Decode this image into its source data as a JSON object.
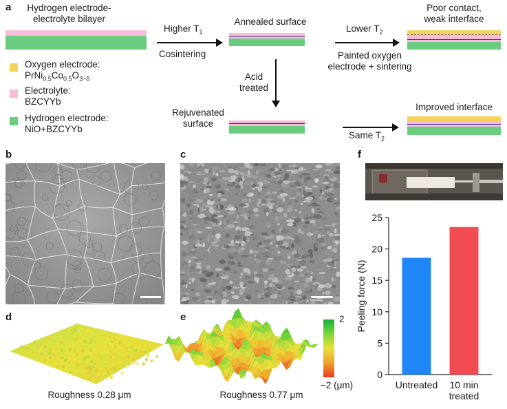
{
  "panel_a": {
    "label": "a",
    "bilayer_title_1": "Hydrogen electrode-",
    "bilayer_title_2": "electrolyte bilayer",
    "step1_above": "Higher T",
    "step1_sub": "1",
    "step1_below": "Cosintering",
    "annealed": "Annealed surface",
    "step2_above": "Lower T",
    "step2_sub": "2",
    "step2_below_1": "Painted oxygen",
    "step2_below_2": "electrode + sintering",
    "poor_1": "Poor contact,",
    "poor_2": "weak interface",
    "acid_1": "Acid",
    "acid_2": "treated",
    "rejuv_1": "Rejuvenated",
    "rejuv_2": "surface",
    "same_t": "Same T",
    "same_sub": "2",
    "improved": "Improved interface",
    "legend": [
      {
        "line1": "Oxygen electrode:",
        "color": "#f5d35c",
        "icon": "yellow-square-icon"
      },
      {
        "line1": "Electrolyte:",
        "line2": "BZCYYb",
        "color": "#f6bcd9",
        "icon": "pink-square-icon"
      },
      {
        "line1": "Hydrogen electrode:",
        "line2": "NiO+BZCYYb",
        "color": "#69cc7e",
        "icon": "green-square-icon"
      }
    ],
    "formula": {
      "base": "PrNi",
      "s1": "0.5",
      "m1": "Co",
      "s2": "0.5",
      "m2": "O",
      "s3": "3−δ"
    }
  },
  "panel_b": {
    "label": "b"
  },
  "panel_c": {
    "label": "c"
  },
  "panel_d": {
    "label": "d",
    "caption": "Roughness 0.28 μm"
  },
  "panel_e": {
    "label": "e",
    "caption": "Roughness 0.77 μm",
    "scale_max": "2",
    "scale_min": "−2 (μm)"
  },
  "panel_f": {
    "label": "f"
  },
  "chart_data": {
    "type": "bar",
    "categories": [
      "Untreated",
      "10 min treated"
    ],
    "category_lines": [
      [
        "Untreated"
      ],
      [
        "10 min",
        "treated"
      ]
    ],
    "values": [
      18.6,
      23.5
    ],
    "colors": [
      "#1e86f5",
      "#f24c53"
    ],
    "ylabel": "Peeling force (N)",
    "ylim": [
      0,
      25
    ],
    "yticks": [
      0,
      5,
      10,
      15,
      20,
      25
    ],
    "grid": false
  }
}
